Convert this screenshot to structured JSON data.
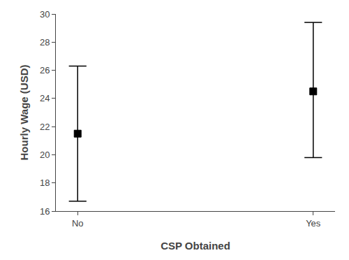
{
  "chart_data": {
    "type": "errorbar",
    "categories": [
      "No",
      "Yes"
    ],
    "values": [
      21.5,
      24.5
    ],
    "upper": [
      26.3,
      29.4
    ],
    "lower": [
      16.7,
      19.8
    ],
    "xlabel": "CSP Obtained",
    "ylabel": "Hourly Wage (USD)",
    "ylim": [
      16,
      30
    ],
    "yticks": [
      16,
      18,
      20,
      22,
      24,
      26,
      28,
      30
    ],
    "color": "#000000",
    "marker": "square",
    "grid": false
  }
}
